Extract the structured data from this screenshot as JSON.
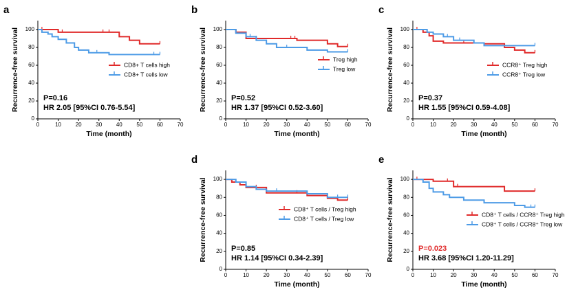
{
  "chart_data": [
    {
      "type": "step",
      "panel": "a",
      "xlabel": "Time (month)",
      "ylabel": "Recurrence-free survival",
      "xlim": [
        0,
        70
      ],
      "ylim": [
        0,
        110
      ],
      "xticks": [
        0,
        10,
        20,
        30,
        40,
        50,
        60,
        70
      ],
      "yticks": [
        0,
        20,
        40,
        60,
        80,
        100
      ],
      "annotations": [
        {
          "text": "P=0.16",
          "color": "#000000"
        },
        {
          "text": "HR 2.05 [95%CI 0.76-5.54]",
          "color": "#000000"
        }
      ],
      "series": [
        {
          "name": "CD8+ T cells high",
          "color": "#e02a2a",
          "x": [
            0,
            10,
            40,
            45,
            50,
            60
          ],
          "values": [
            100,
            97,
            92,
            88,
            84,
            84
          ],
          "censored": [
            2,
            12,
            32,
            35,
            60
          ]
        },
        {
          "name": "CD8+ T cells low",
          "color": "#4d9be6",
          "x": [
            0,
            2,
            5,
            7,
            10,
            14,
            18,
            20,
            25,
            35,
            60
          ],
          "values": [
            100,
            97,
            95,
            92,
            89,
            85,
            80,
            77,
            74,
            72,
            72
          ],
          "censored": [
            29,
            57,
            60
          ]
        }
      ]
    },
    {
      "type": "step",
      "panel": "b",
      "xlabel": "Time (month)",
      "ylabel": "Recurrence-free survival",
      "xlim": [
        0,
        70
      ],
      "ylim": [
        0,
        110
      ],
      "xticks": [
        0,
        10,
        20,
        30,
        40,
        50,
        60,
        70
      ],
      "yticks": [
        0,
        20,
        40,
        60,
        80,
        100
      ],
      "annotations": [
        {
          "text": "P=0.52",
          "color": "#000000"
        },
        {
          "text": "HR 1.37 [95%CI 0.52-3.60]",
          "color": "#000000"
        }
      ],
      "series": [
        {
          "name": "Treg high",
          "color": "#e02a2a",
          "x": [
            0,
            5,
            10,
            35,
            50,
            55,
            60
          ],
          "values": [
            100,
            97,
            90,
            88,
            84,
            81,
            81
          ],
          "censored": [
            15,
            32,
            34,
            60
          ]
        },
        {
          "name": "Treg low",
          "color": "#4d9be6",
          "x": [
            0,
            5,
            10,
            15,
            20,
            25,
            40,
            50,
            60
          ],
          "values": [
            100,
            96,
            92,
            88,
            84,
            80,
            77,
            75,
            75
          ],
          "censored": [
            12,
            30,
            60
          ]
        }
      ]
    },
    {
      "type": "step",
      "panel": "c",
      "xlabel": "Time (month)",
      "ylabel": "Recurrence-free survival",
      "xlim": [
        0,
        70
      ],
      "ylim": [
        0,
        110
      ],
      "xticks": [
        0,
        10,
        20,
        30,
        40,
        50,
        60,
        70
      ],
      "yticks": [
        0,
        20,
        40,
        60,
        80,
        100
      ],
      "annotations": [
        {
          "text": "P=0.37",
          "color": "#000000"
        },
        {
          "text": "HR 1.55 [95%CI 0.59-4.08]",
          "color": "#000000"
        }
      ],
      "series": [
        {
          "name": "CCR8⁺ Treg high",
          "color": "#e02a2a",
          "x": [
            0,
            5,
            8,
            10,
            15,
            35,
            45,
            50,
            55,
            60
          ],
          "values": [
            100,
            97,
            93,
            87,
            85,
            84,
            80,
            77,
            74,
            74
          ],
          "censored": [
            2,
            25,
            30,
            60
          ]
        },
        {
          "name": "CCR8⁺ Treg low",
          "color": "#4d9be6",
          "x": [
            0,
            7,
            10,
            15,
            20,
            30,
            35,
            60
          ],
          "values": [
            100,
            97,
            95,
            92,
            88,
            85,
            82,
            82
          ],
          "censored": [
            17,
            23,
            60
          ]
        }
      ]
    },
    {
      "type": "step",
      "panel": "d",
      "xlabel": "Time (month)",
      "ylabel": "Recurrence-free survival",
      "xlim": [
        0,
        70
      ],
      "ylim": [
        0,
        110
      ],
      "xticks": [
        0,
        10,
        20,
        30,
        40,
        50,
        60,
        70
      ],
      "yticks": [
        0,
        20,
        40,
        60,
        80,
        100
      ],
      "annotations": [
        {
          "text": "P=0.85",
          "color": "#000000"
        },
        {
          "text": "HR 1.14 [95%CI 0.34-2.39]",
          "color": "#000000"
        }
      ],
      "series": [
        {
          "name": "CD8⁺ T cells / Treg high",
          "color": "#e02a2a",
          "x": [
            0,
            3,
            7,
            10,
            20,
            30,
            40,
            50,
            55,
            60
          ],
          "values": [
            100,
            97,
            94,
            91,
            85,
            85,
            82,
            79,
            77,
            77
          ],
          "censored": [
            15,
            35,
            60
          ]
        },
        {
          "name": "CD8⁺ T cells / Treg low",
          "color": "#4d9be6",
          "x": [
            0,
            5,
            10,
            15,
            20,
            40,
            50,
            60
          ],
          "values": [
            100,
            97,
            92,
            89,
            87,
            84,
            80,
            80
          ],
          "censored": [
            25,
            55,
            60
          ]
        }
      ]
    },
    {
      "type": "step",
      "panel": "e",
      "xlabel": "Time (month)",
      "ylabel": "Recurrence-free survival",
      "xlim": [
        0,
        70
      ],
      "ylim": [
        0,
        110
      ],
      "xticks": [
        0,
        10,
        20,
        30,
        40,
        50,
        60,
        70
      ],
      "yticks": [
        0,
        20,
        40,
        60,
        80,
        100
      ],
      "annotations": [
        {
          "text": "P=0.023",
          "color": "#e02a2a"
        },
        {
          "text": "HR 3.68 [95%CI 1.20-11.29]",
          "color": "#000000"
        }
      ],
      "series": [
        {
          "name": "CD8⁺ T cells / CCR8⁺ Treg high",
          "color": "#e02a2a",
          "x": [
            0,
            10,
            20,
            45,
            60
          ],
          "values": [
            100,
            98,
            92,
            87,
            87
          ],
          "censored": [
            2,
            17,
            22,
            60
          ]
        },
        {
          "name": "CD8⁺ T cells / CCR8⁺ Treg low",
          "color": "#4d9be6",
          "x": [
            0,
            5,
            8,
            10,
            15,
            18,
            25,
            35,
            50,
            55,
            60
          ],
          "values": [
            100,
            97,
            90,
            86,
            83,
            80,
            77,
            74,
            71,
            69,
            69
          ],
          "censored": [
            58,
            60
          ]
        }
      ]
    }
  ]
}
